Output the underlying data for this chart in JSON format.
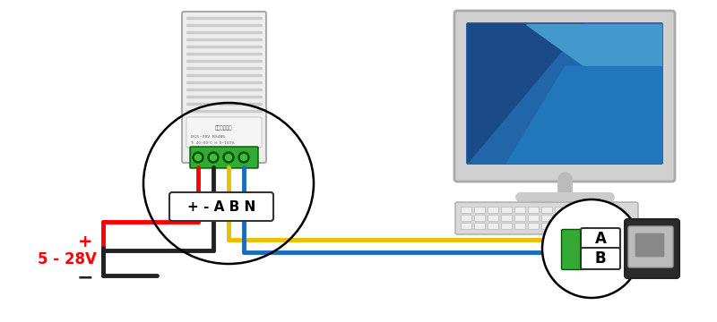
{
  "bg_color": "#ffffff",
  "wire_colors": {
    "red": "#ff0000",
    "yellow": "#e8c000",
    "blue": "#1a6bbf",
    "black": "#222222"
  },
  "label_plus": "+",
  "label_minus": "−",
  "label_voltage": "5 - 28V",
  "label_abn": "+ - A B N",
  "label_a": "A",
  "label_b": "B",
  "wire_lw": 3.5,
  "circle_lw": 1.8,
  "font_size_abn": 11,
  "font_size_label": 12,
  "font_size_voltage": 12
}
